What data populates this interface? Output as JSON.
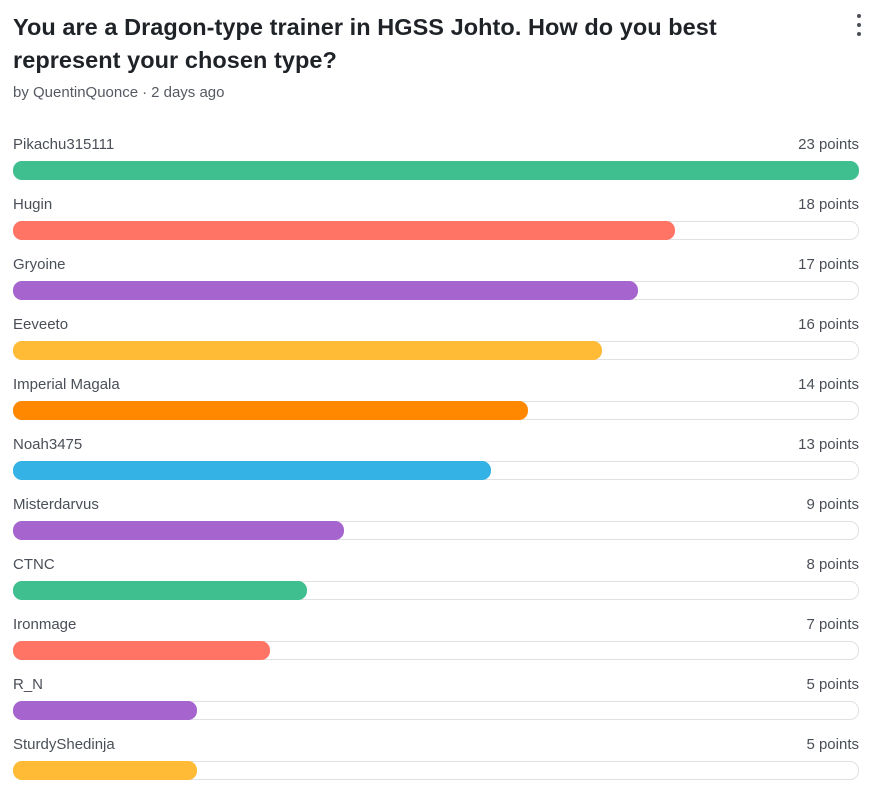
{
  "poll": {
    "title": "You are a Dragon-type trainer in HGSS Johto. How do you best represent your chosen type?",
    "author": "by QuentinQuonce",
    "separator": "·",
    "time": "2 days ago",
    "menu_icon": "more-vertical-icon",
    "max_points": 23,
    "options": [
      {
        "name": "Pikachu315111",
        "points_label": "23 points",
        "points": 23,
        "color": "#3fbf8f"
      },
      {
        "name": "Hugin",
        "points_label": "18 points",
        "points": 18,
        "color": "#ff7465"
      },
      {
        "name": "Gryoine",
        "points_label": "17 points",
        "points": 17,
        "color": "#a664cf"
      },
      {
        "name": "Eeveeto",
        "points_label": "16 points",
        "points": 16,
        "color": "#ffbb36"
      },
      {
        "name": "Imperial Magala",
        "points_label": "14 points",
        "points": 14,
        "color": "#ff8800"
      },
      {
        "name": "Noah3475",
        "points_label": "13 points",
        "points": 13,
        "color": "#34b2e6"
      },
      {
        "name": "Misterdarvus",
        "points_label": "9 points",
        "points": 9,
        "color": "#a664cf"
      },
      {
        "name": "CTNC",
        "points_label": "8 points",
        "points": 8,
        "color": "#3fbf8f"
      },
      {
        "name": "Ironmage",
        "points_label": "7 points",
        "points": 7,
        "color": "#ff7465"
      },
      {
        "name": "R_N",
        "points_label": "5 points",
        "points": 5,
        "color": "#a664cf"
      },
      {
        "name": "SturdyShedinja",
        "points_label": "5 points",
        "points": 5,
        "color": "#ffbb36"
      }
    ]
  }
}
